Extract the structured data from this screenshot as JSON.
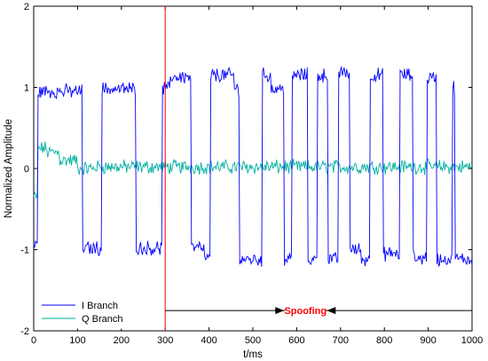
{
  "chart_data": {
    "type": "line",
    "xlabel": "t/ms",
    "ylabel": "Normalized Amplitude",
    "xlim": [
      0,
      1000
    ],
    "ylim": [
      -2,
      2
    ],
    "xticks": [
      0,
      100,
      200,
      300,
      400,
      500,
      600,
      700,
      800,
      900,
      1000
    ],
    "yticks": [
      -2,
      -1,
      0,
      1,
      2
    ],
    "grid": false,
    "legend_position": "bottom-left",
    "series": [
      {
        "name": "I Branch",
        "color": "#0000ff",
        "noise_amplitude": 0.07,
        "segments": [
          {
            "x0": 0,
            "x1": 10,
            "y": -0.95
          },
          {
            "x0": 10,
            "x1": 112,
            "y": 0.95
          },
          {
            "x0": 112,
            "x1": 155,
            "y": -0.98
          },
          {
            "x0": 155,
            "x1": 233,
            "y": 0.98
          },
          {
            "x0": 233,
            "x1": 293,
            "y": -0.98
          },
          {
            "x0": 293,
            "x1": 312,
            "y": 0.98
          },
          {
            "x0": 312,
            "x1": 360,
            "y": 1.13
          },
          {
            "x0": 360,
            "x1": 390,
            "y": -0.98
          },
          {
            "x0": 390,
            "x1": 404,
            "y": -1.12
          },
          {
            "x0": 404,
            "x1": 458,
            "y": 1.15
          },
          {
            "x0": 458,
            "x1": 470,
            "y": 0.98
          },
          {
            "x0": 470,
            "x1": 522,
            "y": -1.12
          },
          {
            "x0": 522,
            "x1": 542,
            "y": 1.15
          },
          {
            "x0": 542,
            "x1": 572,
            "y": 0.98
          },
          {
            "x0": 572,
            "x1": 590,
            "y": -1.12
          },
          {
            "x0": 590,
            "x1": 625,
            "y": 1.15
          },
          {
            "x0": 625,
            "x1": 648,
            "y": -1.12
          },
          {
            "x0": 648,
            "x1": 672,
            "y": 1.15
          },
          {
            "x0": 672,
            "x1": 695,
            "y": -1.12
          },
          {
            "x0": 695,
            "x1": 722,
            "y": 1.18
          },
          {
            "x0": 722,
            "x1": 748,
            "y": -1.0
          },
          {
            "x0": 748,
            "x1": 768,
            "y": -1.12
          },
          {
            "x0": 768,
            "x1": 797,
            "y": 1.15
          },
          {
            "x0": 797,
            "x1": 835,
            "y": -1.05
          },
          {
            "x0": 835,
            "x1": 865,
            "y": 1.15
          },
          {
            "x0": 865,
            "x1": 897,
            "y": -1.1
          },
          {
            "x0": 897,
            "x1": 920,
            "y": 1.12
          },
          {
            "x0": 920,
            "x1": 955,
            "y": -1.12
          },
          {
            "x0": 955,
            "x1": 962,
            "y": 1.0
          },
          {
            "x0": 962,
            "x1": 1000,
            "y": -1.12
          }
        ]
      },
      {
        "name": "Q Branch",
        "color": "#00b0a0",
        "noise_amplitude": 0.07,
        "segments": [
          {
            "x0": 0,
            "x1": 10,
            "y": -0.35
          },
          {
            "x0": 10,
            "x1": 30,
            "y": 0.25
          },
          {
            "x0": 30,
            "x1": 60,
            "y": 0.2
          },
          {
            "x0": 60,
            "x1": 100,
            "y": 0.1
          },
          {
            "x0": 100,
            "x1": 140,
            "y": 0.0
          },
          {
            "x0": 140,
            "x1": 1000,
            "y": 0.02
          }
        ]
      }
    ],
    "vertical_line": {
      "x": 300,
      "color": "#ff0000"
    },
    "annotation": {
      "text": "Spoofing",
      "x_start": 300,
      "x_end": 1000,
      "y": -1.75,
      "text_x": 620,
      "color": "#ff0000"
    }
  }
}
